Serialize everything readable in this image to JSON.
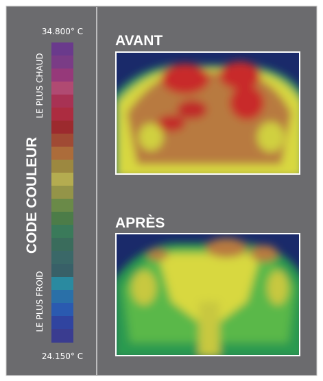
{
  "scale": {
    "title": "CODE COULEUR",
    "max": "34.800° C",
    "min": "24.150° C",
    "hot": "LE PLUS CHAUD",
    "cold": "LE PLUS FROID"
  },
  "panels": [
    {
      "title": "AVANT"
    },
    {
      "title": "APRÈS"
    }
  ]
}
